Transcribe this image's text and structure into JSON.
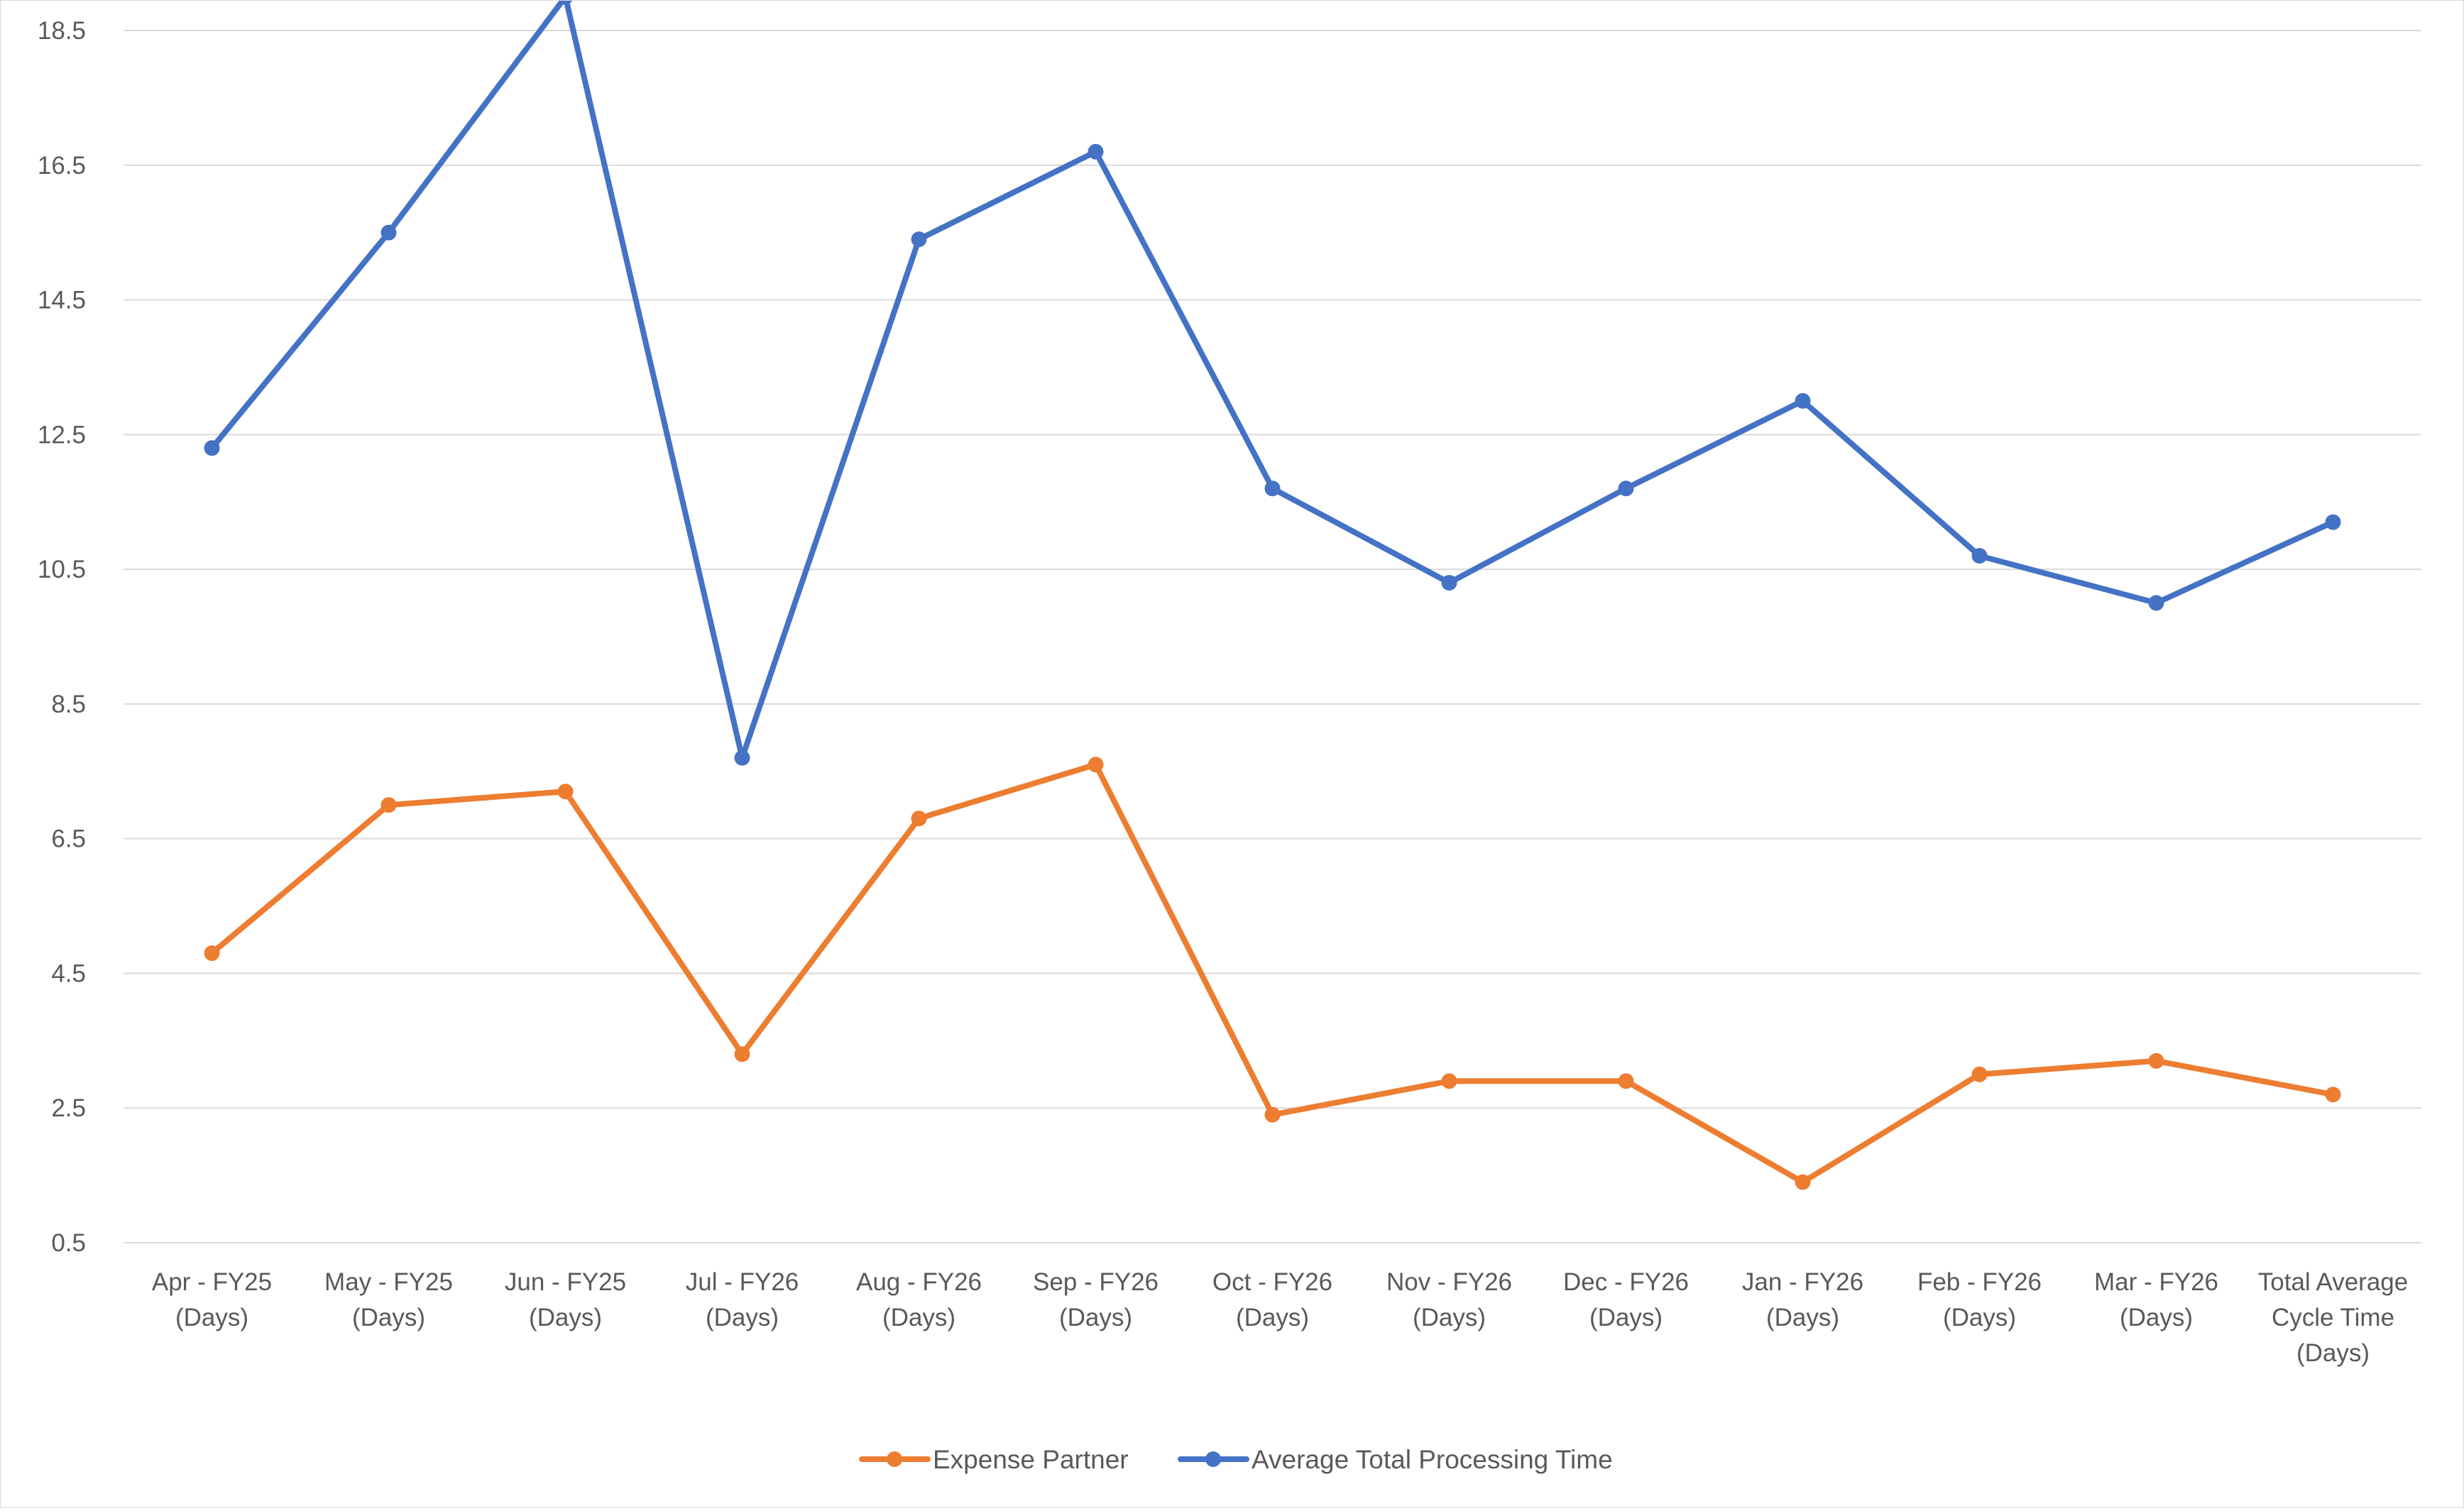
{
  "chart_data": {
    "type": "line",
    "title": "",
    "xlabel": "",
    "ylabel": "",
    "ylim": [
      0.5,
      19.0
    ],
    "yticks": [
      "0.5",
      "2.5",
      "4.5",
      "6.5",
      "8.5",
      "10.5",
      "12.5",
      "14.5",
      "16.5",
      "18.5"
    ],
    "grid": "horizontal",
    "legend_position": "bottom",
    "categories": [
      [
        "Apr - FY25",
        "(Days)"
      ],
      [
        "May - FY25",
        "(Days)"
      ],
      [
        "Jun - FY25",
        "(Days)"
      ],
      [
        "Jul - FY26",
        "(Days)"
      ],
      [
        "Aug - FY26",
        "(Days)"
      ],
      [
        "Sep - FY26",
        "(Days)"
      ],
      [
        "Oct - FY26",
        "(Days)"
      ],
      [
        "Nov - FY26",
        "(Days)"
      ],
      [
        "Dec - FY26",
        "(Days)"
      ],
      [
        "Jan - FY26",
        "(Days)"
      ],
      [
        "Feb - FY26",
        "(Days)"
      ],
      [
        "Mar - FY26",
        "(Days)"
      ],
      [
        "Total Average",
        "Cycle Time",
        "(Days)"
      ]
    ],
    "series": [
      {
        "name": "Expense Partner",
        "color": "#ed7d31",
        "values": [
          4.8,
          7.0,
          7.2,
          3.3,
          6.8,
          7.6,
          2.4,
          2.9,
          2.9,
          1.4,
          3.0,
          3.2,
          2.7
        ]
      },
      {
        "name": "Average Total Processing Time",
        "color": "#4472c4",
        "values": [
          12.3,
          15.5,
          19.0,
          7.7,
          15.4,
          16.7,
          11.7,
          10.3,
          11.7,
          13.0,
          10.7,
          10.0,
          11.2
        ]
      }
    ],
    "gridline_color": "#d9d9d9",
    "text_color": "#595959"
  }
}
